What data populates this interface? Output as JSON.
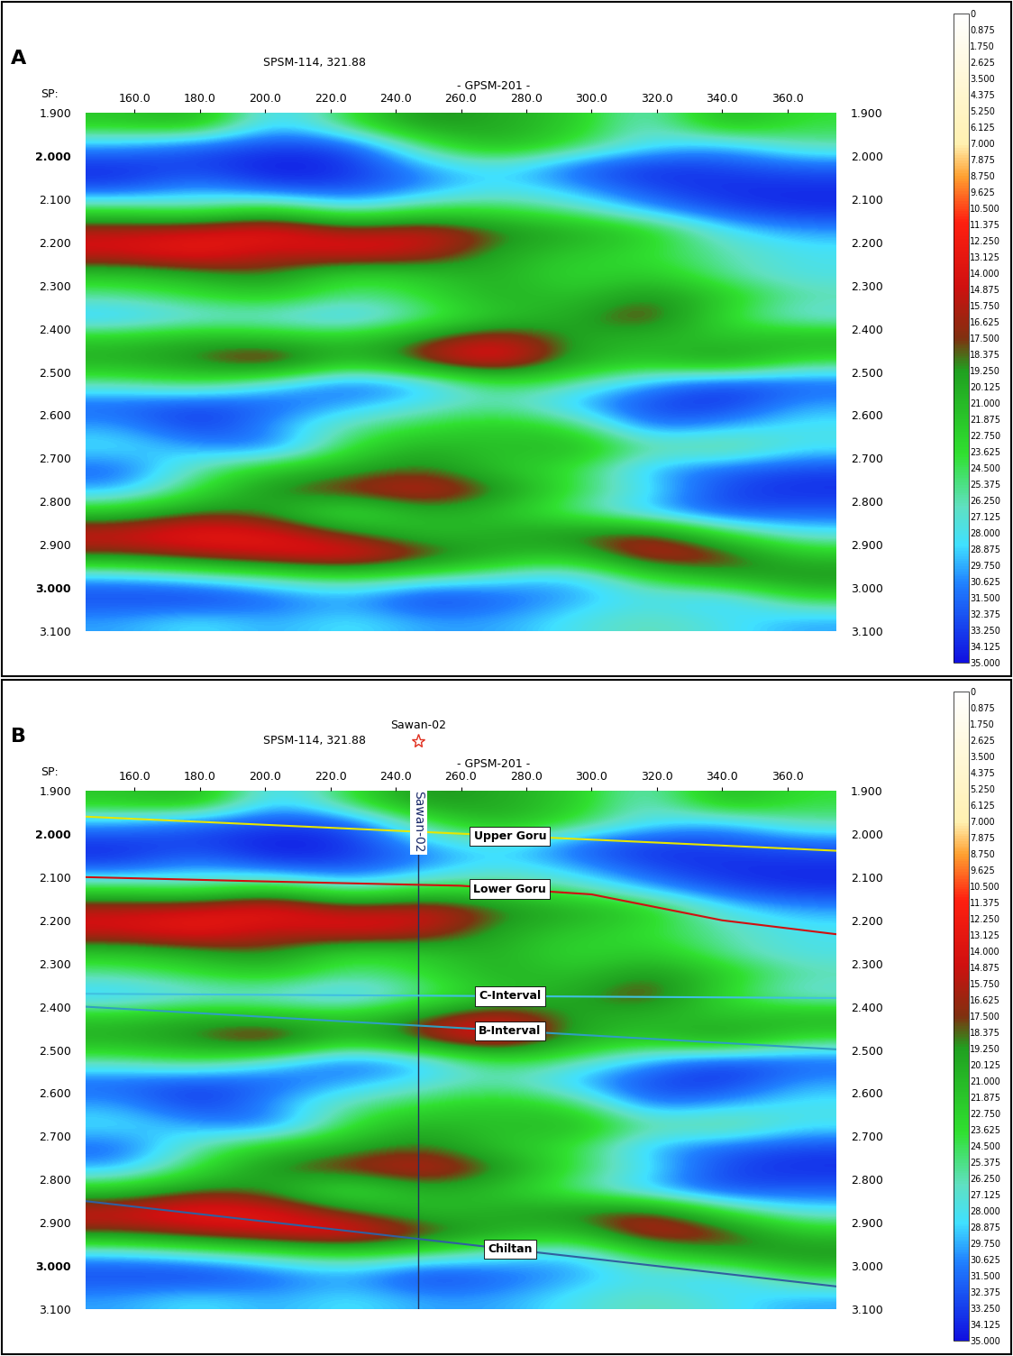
{
  "chart_data": [
    {
      "type": "heatmap",
      "title": "A",
      "x_label": "SP:",
      "annotations": [
        {
          "text": "SPSM-114, 321.88",
          "x": 215
        },
        {
          "text": "- GPSM-201 -",
          "x": 270
        }
      ],
      "xlim": [
        145,
        375
      ],
      "ylim": [
        3.1,
        1.9
      ],
      "xticks": [
        {
          "value": 160,
          "label": "160.0"
        },
        {
          "value": 180,
          "label": "180.0"
        },
        {
          "value": 200,
          "label": "200.0"
        },
        {
          "value": 220,
          "label": "220.0"
        },
        {
          "value": 240,
          "label": "240.0"
        },
        {
          "value": 260,
          "label": "260.0"
        },
        {
          "value": 280,
          "label": "280.0"
        },
        {
          "value": 300,
          "label": "300.0"
        },
        {
          "value": 320,
          "label": "320.0"
        },
        {
          "value": 340,
          "label": "340.0"
        },
        {
          "value": 360,
          "label": "360.0"
        }
      ],
      "yticks": [
        {
          "value": 1.9,
          "label": "1.900"
        },
        {
          "value": 2.0,
          "label": "2.000"
        },
        {
          "value": 2.1,
          "label": "2.100"
        },
        {
          "value": 2.2,
          "label": "2.200"
        },
        {
          "value": 2.3,
          "label": "2.300"
        },
        {
          "value": 2.4,
          "label": "2.400"
        },
        {
          "value": 2.5,
          "label": "2.500"
        },
        {
          "value": 2.6,
          "label": "2.600"
        },
        {
          "value": 2.7,
          "label": "2.700"
        },
        {
          "value": 2.8,
          "label": "2.800"
        },
        {
          "value": 2.9,
          "label": "2.900"
        },
        {
          "value": 3.0,
          "label": "3.000"
        },
        {
          "value": 3.1,
          "label": "3.100"
        }
      ],
      "x": [
        156.5,
        179.5,
        202.5,
        225.5,
        248.5,
        271.5,
        294.5,
        317.5,
        340.5,
        363.5
      ],
      "y": [
        1.925,
        1.975,
        2.025,
        2.075,
        2.125,
        2.175,
        2.225,
        2.275,
        2.325,
        2.375,
        2.425,
        2.475,
        2.525,
        2.575,
        2.625,
        2.675,
        2.725,
        2.775,
        2.825,
        2.875,
        2.925,
        2.975,
        3.025,
        3.075
      ],
      "cells": [
        [
          22,
          20,
          30,
          24,
          18,
          20,
          22,
          28,
          20,
          24
        ],
        [
          30,
          32,
          33,
          33,
          25,
          20,
          24,
          28,
          30,
          26
        ],
        [
          34,
          33,
          35,
          34,
          30,
          28,
          32,
          34,
          33,
          32
        ],
        [
          33,
          30,
          33,
          33,
          31,
          28,
          30,
          33,
          34,
          34
        ],
        [
          24,
          26,
          22,
          28,
          24,
          24,
          26,
          30,
          33,
          34
        ],
        [
          15,
          14,
          12,
          16,
          14,
          18,
          20,
          22,
          28,
          30
        ],
        [
          14,
          12,
          16,
          13,
          15,
          20,
          22,
          24,
          26,
          28
        ],
        [
          22,
          20,
          18,
          24,
          22,
          20,
          24,
          22,
          26,
          28
        ],
        [
          26,
          24,
          22,
          26,
          24,
          20,
          22,
          18,
          22,
          26
        ],
        [
          30,
          28,
          28,
          30,
          26,
          22,
          20,
          16,
          24,
          28
        ],
        [
          22,
          20,
          21,
          22,
          18,
          14,
          20,
          21,
          22,
          20
        ],
        [
          20,
          18,
          14,
          22,
          16,
          12,
          20,
          22,
          18,
          24
        ],
        [
          26,
          24,
          28,
          32,
          30,
          24,
          26,
          30,
          33,
          32
        ],
        [
          32,
          33,
          32,
          30,
          28,
          26,
          30,
          33,
          34,
          30
        ],
        [
          30,
          34,
          30,
          26,
          24,
          22,
          24,
          32,
          30,
          28
        ],
        [
          28,
          30,
          32,
          24,
          20,
          22,
          20,
          26,
          24,
          28
        ],
        [
          32,
          26,
          22,
          20,
          18,
          22,
          24,
          30,
          32,
          33
        ],
        [
          30,
          24,
          18,
          16,
          14,
          18,
          24,
          28,
          33,
          34
        ],
        [
          22,
          18,
          20,
          26,
          20,
          22,
          26,
          30,
          33,
          32
        ],
        [
          14,
          12,
          13,
          18,
          22,
          20,
          18,
          16,
          24,
          28
        ],
        [
          18,
          16,
          14,
          12,
          16,
          20,
          22,
          14,
          16,
          22
        ],
        [
          30,
          28,
          26,
          24,
          26,
          28,
          30,
          24,
          20,
          18
        ],
        [
          33,
          34,
          32,
          30,
          34,
          32,
          30,
          28,
          30,
          24
        ],
        [
          30,
          28,
          30,
          28,
          30,
          30,
          28,
          26,
          28,
          30
        ]
      ],
      "colorbar_range": [
        0,
        35
      ],
      "colorbar_ticks": [
        0,
        0.875,
        {
          "value": 1.75,
          "label": "1.750"
        },
        2.625,
        {
          "value": 3.5,
          "label": "3.500"
        },
        4.375,
        {
          "value": 5.25,
          "label": "5.250"
        },
        6.125,
        {
          "value": 7,
          "label": "7.000"
        },
        7.875,
        {
          "value": 8.75,
          "label": "8.750"
        },
        9.625,
        {
          "value": 10.5,
          "label": "10.500"
        },
        11.375,
        {
          "value": 12.25,
          "label": "12.250"
        },
        13.125,
        {
          "value": 14,
          "label": "14.000"
        },
        14.875,
        {
          "value": 15.75,
          "label": "15.750"
        },
        16.625,
        {
          "value": 17.5,
          "label": "17.500"
        },
        18.375,
        {
          "value": 19.25,
          "label": "19.250"
        },
        20.125,
        {
          "value": 21,
          "label": "21.000"
        },
        21.875,
        {
          "value": 22.75,
          "label": "22.750"
        },
        23.625,
        {
          "value": 24.5,
          "label": "24.500"
        },
        25.375,
        {
          "value": 26.25,
          "label": "26.250"
        },
        27.125,
        {
          "value": 28,
          "label": "28.000"
        },
        28.875,
        {
          "value": 29.75,
          "label": "29.750"
        },
        30.625,
        {
          "value": 31.5,
          "label": "31.500"
        },
        32.375,
        {
          "value": 33.25,
          "label": "33.250"
        },
        34.125,
        {
          "value": 35,
          "label": "35.000"
        }
      ]
    },
    {
      "type": "heatmap",
      "title": "B",
      "x_label": "SP:",
      "annotations": [
        {
          "text": "SPSM-114, 321.88",
          "x": 215
        },
        {
          "text": "- GPSM-201 -",
          "x": 270
        }
      ],
      "well": {
        "name": "Sawan-02",
        "x": 247
      },
      "xlim": [
        145,
        375
      ],
      "ylim": [
        3.1,
        1.9
      ],
      "xticks": [
        {
          "value": 160,
          "label": "160.0"
        },
        {
          "value": 180,
          "label": "180.0"
        },
        {
          "value": 200,
          "label": "200.0"
        },
        {
          "value": 220,
          "label": "220.0"
        },
        {
          "value": 240,
          "label": "240.0"
        },
        {
          "value": 260,
          "label": "260.0"
        },
        {
          "value": 280,
          "label": "280.0"
        },
        {
          "value": 300,
          "label": "300.0"
        },
        {
          "value": 320,
          "label": "320.0"
        },
        {
          "value": 340,
          "label": "340.0"
        },
        {
          "value": 360,
          "label": "360.0"
        }
      ],
      "yticks": [
        {
          "value": 1.9,
          "label": "1.900"
        },
        {
          "value": 2.0,
          "label": "2.000"
        },
        {
          "value": 2.1,
          "label": "2.100"
        },
        {
          "value": 2.2,
          "label": "2.200"
        },
        {
          "value": 2.3,
          "label": "2.300"
        },
        {
          "value": 2.4,
          "label": "2.400"
        },
        {
          "value": 2.5,
          "label": "2.500"
        },
        {
          "value": 2.6,
          "label": "2.600"
        },
        {
          "value": 2.7,
          "label": "2.700"
        },
        {
          "value": 2.8,
          "label": "2.800"
        },
        {
          "value": 2.9,
          "label": "2.900"
        },
        {
          "value": 3.0,
          "label": "3.000"
        },
        {
          "value": 3.1,
          "label": "3.100"
        }
      ],
      "x": [
        156.5,
        179.5,
        202.5,
        225.5,
        248.5,
        271.5,
        294.5,
        317.5,
        340.5,
        363.5
      ],
      "y": [
        1.925,
        1.975,
        2.025,
        2.075,
        2.125,
        2.175,
        2.225,
        2.275,
        2.325,
        2.375,
        2.425,
        2.475,
        2.525,
        2.575,
        2.625,
        2.675,
        2.725,
        2.775,
        2.825,
        2.875,
        2.925,
        2.975,
        3.025,
        3.075
      ],
      "cells": [
        [
          22,
          20,
          30,
          24,
          18,
          20,
          22,
          28,
          20,
          24
        ],
        [
          30,
          32,
          33,
          33,
          25,
          20,
          24,
          28,
          30,
          26
        ],
        [
          34,
          33,
          35,
          34,
          30,
          28,
          32,
          34,
          33,
          32
        ],
        [
          33,
          30,
          33,
          33,
          31,
          28,
          30,
          33,
          34,
          34
        ],
        [
          24,
          26,
          22,
          28,
          24,
          24,
          26,
          30,
          33,
          34
        ],
        [
          15,
          14,
          12,
          16,
          14,
          18,
          20,
          22,
          28,
          30
        ],
        [
          14,
          12,
          16,
          13,
          15,
          20,
          22,
          24,
          26,
          28
        ],
        [
          22,
          20,
          18,
          24,
          22,
          20,
          24,
          22,
          26,
          28
        ],
        [
          26,
          24,
          22,
          26,
          24,
          20,
          22,
          18,
          22,
          26
        ],
        [
          30,
          28,
          28,
          30,
          26,
          22,
          20,
          16,
          24,
          28
        ],
        [
          22,
          20,
          21,
          22,
          18,
          14,
          20,
          21,
          22,
          20
        ],
        [
          20,
          18,
          14,
          22,
          16,
          12,
          20,
          22,
          18,
          24
        ],
        [
          26,
          24,
          28,
          32,
          30,
          24,
          26,
          30,
          33,
          32
        ],
        [
          32,
          33,
          32,
          30,
          28,
          26,
          30,
          33,
          34,
          30
        ],
        [
          30,
          34,
          30,
          26,
          24,
          22,
          24,
          32,
          30,
          28
        ],
        [
          28,
          30,
          32,
          24,
          20,
          22,
          20,
          26,
          24,
          28
        ],
        [
          32,
          26,
          22,
          20,
          18,
          22,
          24,
          30,
          32,
          33
        ],
        [
          30,
          24,
          18,
          16,
          14,
          18,
          24,
          28,
          33,
          34
        ],
        [
          22,
          18,
          20,
          26,
          20,
          22,
          26,
          30,
          33,
          32
        ],
        [
          14,
          12,
          13,
          18,
          22,
          20,
          18,
          16,
          24,
          28
        ],
        [
          18,
          16,
          14,
          12,
          16,
          20,
          22,
          14,
          16,
          22
        ],
        [
          30,
          28,
          26,
          24,
          26,
          28,
          30,
          24,
          20,
          18
        ],
        [
          33,
          34,
          32,
          30,
          34,
          32,
          30,
          28,
          30,
          24
        ],
        [
          30,
          28,
          30,
          28,
          30,
          30,
          28,
          26,
          28,
          30
        ]
      ],
      "series": [
        {
          "name": "Upper Goru",
          "color": "#e6e600",
          "x": [
            145,
            378
          ],
          "values": [
            1.96,
            2.04
          ]
        },
        {
          "name": "Lower Goru",
          "color": "#d01010",
          "x": [
            145,
            200,
            260,
            300,
            310,
            340,
            378
          ],
          "values": [
            2.1,
            2.11,
            2.12,
            2.14,
            2.155,
            2.2,
            2.235
          ]
        },
        {
          "name": "C-Interval",
          "color": "#40c0e0",
          "x": [
            145,
            378
          ],
          "values": [
            2.37,
            2.38
          ]
        },
        {
          "name": "B-Interval",
          "color": "#2f9fc0",
          "x": [
            145,
            378
          ],
          "values": [
            2.4,
            2.5
          ]
        },
        {
          "name": "Chiltan",
          "color": "#3060a0",
          "x": [
            145,
            378
          ],
          "values": [
            2.85,
            3.05
          ]
        }
      ],
      "colorbar_range": [
        0,
        35
      ],
      "colorbar_ticks": [
        0,
        0.875,
        {
          "value": 1.75,
          "label": "1.750"
        },
        2.625,
        {
          "value": 3.5,
          "label": "3.500"
        },
        4.375,
        {
          "value": 5.25,
          "label": "5.250"
        },
        6.125,
        {
          "value": 7,
          "label": "7.000"
        },
        7.875,
        {
          "value": 8.75,
          "label": "8.750"
        },
        9.625,
        {
          "value": 10.5,
          "label": "10.500"
        },
        11.375,
        {
          "value": 12.25,
          "label": "12.250"
        },
        13.125,
        {
          "value": 14,
          "label": "14.000"
        },
        14.875,
        {
          "value": 15.75,
          "label": "15.750"
        },
        16.625,
        {
          "value": 17.5,
          "label": "17.500"
        },
        18.375,
        {
          "value": 19.25,
          "label": "19.250"
        },
        20.125,
        {
          "value": 21,
          "label": "21.000"
        },
        21.875,
        {
          "value": 22.75,
          "label": "22.750"
        },
        23.625,
        {
          "value": 24.5,
          "label": "24.500"
        },
        25.375,
        {
          "value": 26.25,
          "label": "26.250"
        },
        27.125,
        {
          "value": 28,
          "label": "28.000"
        },
        28.875,
        {
          "value": 29.75,
          "label": "29.750"
        },
        30.625,
        {
          "value": 31.5,
          "label": "31.500"
        },
        32.375,
        {
          "value": 33.25,
          "label": "33.250"
        },
        34.125,
        {
          "value": 35,
          "label": "35.000"
        }
      ]
    }
  ]
}
